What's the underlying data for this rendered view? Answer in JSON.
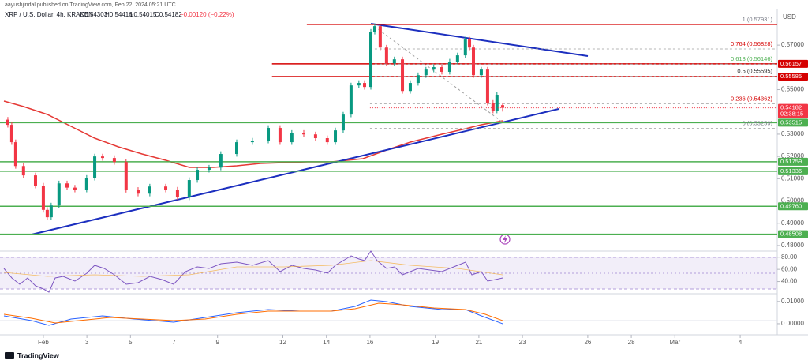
{
  "chart_data": {
    "type": "candlestick",
    "published": "aayushjindal published on TradingView.com, Feb 22, 2024 05:21 UTC",
    "title": "XRP / U.S. Dollar, 4h, KRAKEN",
    "ohlc_text": [
      "O0.54303",
      "H0.54416",
      "L0.54015",
      "C0.54182",
      "−0.00120 (−0.22%)"
    ],
    "brand": "TradingView",
    "y_unit": "USD",
    "x": [
      -0.63,
      -0.45,
      -0.27,
      0.09,
      0.64,
      1.0,
      1.18,
      1.36,
      1.72,
      2.09,
      2.45,
      2.99,
      3.36,
      3.72,
      4.26,
      4.8,
      5.35,
      5.89,
      6.62,
      7.16,
      7.7,
      8.07,
      8.61,
      9.15,
      9.88,
      10.6,
      11.33,
      11.87,
      12.41,
      12.96,
      13.5,
      14.04,
      14.41,
      14.77,
      15.13,
      15.49,
      15.75,
      16.04,
      16.22,
      16.47,
      16.76,
      17.12,
      17.49,
      17.85,
      18.21,
      18.57,
      18.93,
      19.3,
      19.66,
      20.02,
      20.38,
      20.57,
      20.75,
      21.11,
      21.4,
      21.65,
      21.83,
      22.09
    ],
    "open": [
      0.5365,
      0.5342,
      0.5264,
      0.5157,
      0.5115,
      0.5069,
      0.496,
      0.4927,
      0.498,
      0.5079,
      0.506,
      0.5051,
      0.5104,
      0.52,
      0.5193,
      0.5175,
      0.505,
      0.5033,
      0.5065,
      0.5051,
      0.5016,
      0.5094,
      0.514,
      0.515,
      0.5211,
      0.5264,
      0.5271,
      0.5328,
      0.5264,
      0.5306,
      0.5299,
      0.5282,
      0.5264,
      0.5317,
      0.5388,
      0.5519,
      0.553,
      0.5512,
      0.576,
      0.5785,
      0.5689,
      0.5618,
      0.5636,
      0.5494,
      0.553,
      0.5565,
      0.559,
      0.5601,
      0.558,
      0.5626,
      0.5654,
      0.5725,
      0.5689,
      0.5565,
      0.559,
      0.5441,
      0.5406,
      0.54303
    ],
    "high": [
      0.5377,
      0.5354,
      0.5276,
      0.5169,
      0.5127,
      0.5081,
      0.4972,
      0.4992,
      0.5091,
      0.5091,
      0.5072,
      0.5116,
      0.5212,
      0.5212,
      0.5205,
      0.5187,
      0.5062,
      0.5077,
      0.5077,
      0.5063,
      0.5106,
      0.5152,
      0.5162,
      0.5223,
      0.5276,
      0.5283,
      0.534,
      0.534,
      0.5318,
      0.5318,
      0.5311,
      0.5294,
      0.5329,
      0.54,
      0.5531,
      0.5542,
      0.5542,
      0.5772,
      0.5793,
      0.579,
      0.5701,
      0.5648,
      0.5648,
      0.5542,
      0.5577,
      0.5602,
      0.5613,
      0.5613,
      0.5638,
      0.5666,
      0.5737,
      0.5737,
      0.5701,
      0.5602,
      0.5602,
      0.5453,
      0.5489,
      0.54416
    ],
    "low": [
      0.533,
      0.5252,
      0.5145,
      0.5103,
      0.5057,
      0.4948,
      0.4915,
      0.4915,
      0.4968,
      0.5048,
      0.5039,
      0.5039,
      0.5092,
      0.5181,
      0.5163,
      0.5038,
      0.5021,
      0.5021,
      0.5039,
      0.5004,
      0.5004,
      0.5082,
      0.5128,
      0.5138,
      0.5199,
      0.5252,
      0.5259,
      0.5252,
      0.5252,
      0.5287,
      0.527,
      0.5252,
      0.5252,
      0.5305,
      0.5376,
      0.5507,
      0.55,
      0.55,
      0.5748,
      0.5677,
      0.5606,
      0.5606,
      0.5482,
      0.5482,
      0.5518,
      0.5553,
      0.5578,
      0.5568,
      0.5568,
      0.5614,
      0.5642,
      0.5677,
      0.5553,
      0.5553,
      0.5429,
      0.5394,
      0.5394,
      0.54015
    ],
    "close": [
      0.5342,
      0.5264,
      0.5157,
      0.5115,
      0.5069,
      0.496,
      0.4927,
      0.498,
      0.5079,
      0.506,
      0.5051,
      0.5104,
      0.52,
      0.5193,
      0.5175,
      0.505,
      0.5033,
      0.5065,
      0.5051,
      0.5016,
      0.5094,
      0.514,
      0.515,
      0.5211,
      0.5264,
      0.5271,
      0.5328,
      0.5264,
      0.5306,
      0.5299,
      0.5282,
      0.5264,
      0.5317,
      0.5388,
      0.5519,
      0.553,
      0.5512,
      0.576,
      0.5785,
      0.5689,
      0.5618,
      0.5636,
      0.5494,
      0.553,
      0.5565,
      0.559,
      0.5601,
      0.558,
      0.5626,
      0.5654,
      0.5725,
      0.5689,
      0.5565,
      0.559,
      0.5441,
      0.5406,
      0.5477,
      0.54182
    ],
    "up_color": "#089981",
    "down_color": "#f23645",
    "xlim": [
      -0.99,
      34.7
    ],
    "ylim": [
      0.4775,
      0.586
    ],
    "xticks": [
      {
        "value": 1,
        "label": "Feb"
      },
      3,
      5,
      7,
      9,
      12,
      14,
      16,
      19,
      21,
      23,
      26,
      28,
      {
        "value": 30,
        "label": "Mar"
      },
      {
        "value": 33,
        "label": "4"
      }
    ],
    "yticks": [
      {
        "value": 0.57,
        "label": "0.57000"
      },
      {
        "value": 0.55,
        "label": "0.55000"
      },
      {
        "value": 0.53,
        "label": "0.53000"
      },
      {
        "value": 0.52,
        "label": "0.52000"
      },
      {
        "value": 0.51,
        "label": "0.51000"
      },
      {
        "value": 0.5,
        "label": "0.50000"
      },
      {
        "value": 0.49,
        "label": "0.49000"
      },
      {
        "value": 0.48,
        "label": "0.48000"
      }
    ],
    "levels": [
      {
        "value": 0.56157,
        "label": "0.56157",
        "color": "#d50000"
      },
      {
        "value": 0.55585,
        "label": "0.55585",
        "color": "#d50000"
      },
      {
        "value": 0.53515,
        "label": "0.53515",
        "color": "#4caf50"
      },
      {
        "value": 0.51759,
        "label": "0.51759",
        "color": "#4caf50"
      },
      {
        "value": 0.51336,
        "label": "0.51336",
        "color": "#4caf50"
      },
      {
        "value": 0.4976,
        "label": "0.49760",
        "color": "#4caf50"
      },
      {
        "value": 0.48508,
        "label": "0.48508",
        "color": "#4caf50"
      }
    ],
    "fib": [
      {
        "value": 0.57931,
        "label": "1 (0.57931)",
        "color": "#787b86"
      },
      {
        "value": 0.56828,
        "label": "0.764 (0.56828)",
        "color": "#d50000"
      },
      {
        "value": 0.56146,
        "label": "0.618 (0.56146)",
        "color": "#4caf50"
      },
      {
        "value": 0.55595,
        "label": "0.5 (0.55595)",
        "color": "#333333"
      },
      {
        "value": 0.54362,
        "label": "0.236 (0.54362)",
        "color": "#d50000"
      },
      {
        "value": 0.53259,
        "label": "0 (0.53259)",
        "color": "#787b86"
      }
    ],
    "last": {
      "value": 0.54182,
      "label": "0.54182",
      "countdown": "02:38:15",
      "color": "#f23645"
    },
    "rsi_ylim": [
      20,
      90
    ],
    "rsi_ticks": [
      {
        "value": 80,
        "label": "80.00"
      },
      {
        "value": 60,
        "label": "60.00"
      },
      {
        "value": 40,
        "label": "40.00"
      }
    ],
    "macd_ylim": [
      -0.005,
      0.0135
    ],
    "macd_ticks": [
      {
        "value": 0.01,
        "label": "0.01000"
      },
      {
        "value": 0,
        "label": "0.00000"
      }
    ]
  }
}
